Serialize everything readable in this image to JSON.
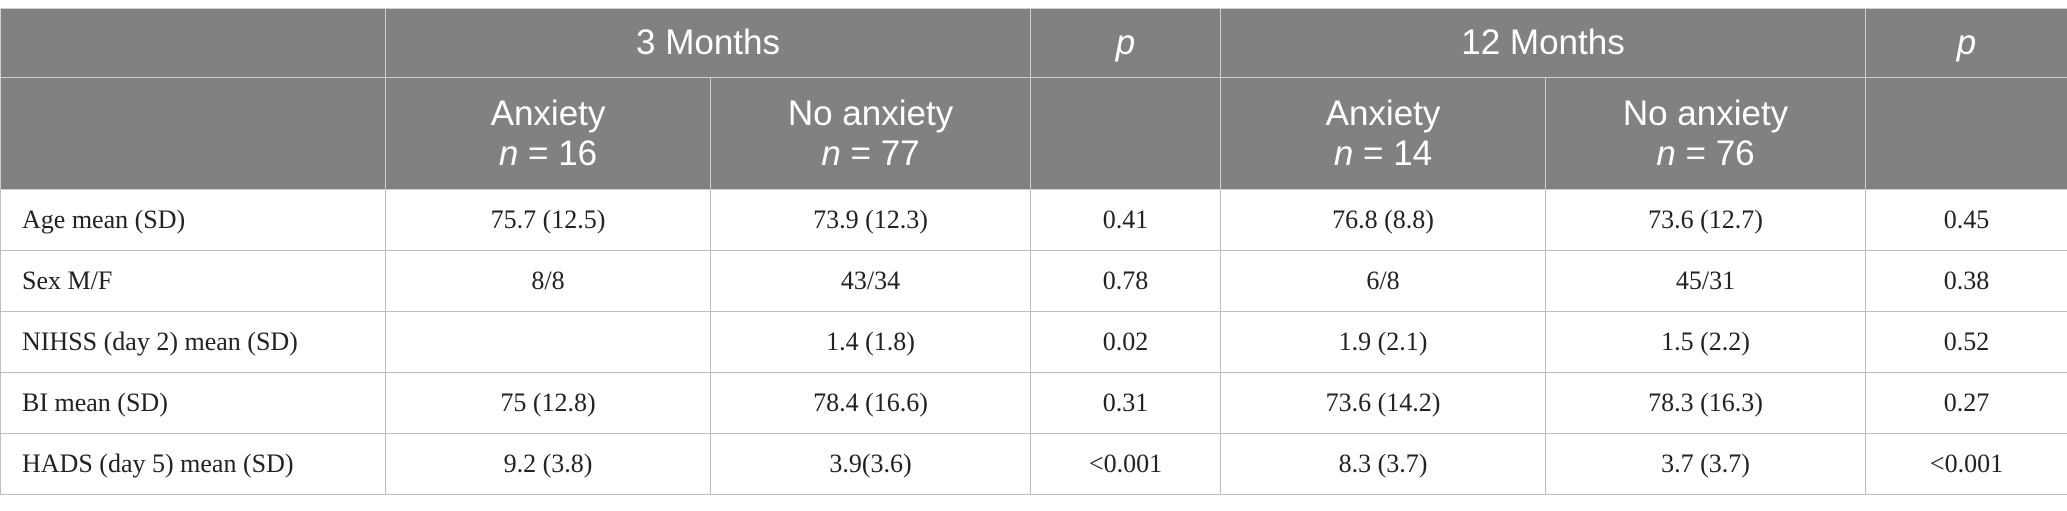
{
  "header": {
    "group_3m": "3 Months",
    "group_12m": "12 Months",
    "p_label": "p",
    "anxiety": "Anxiety",
    "no_anxiety": "No anxiety",
    "n_prefix": "n",
    "n_3m_anxiety": "= 16",
    "n_3m_no_anxiety": "= 77",
    "n_12m_anxiety": "= 14",
    "n_12m_no_anxiety": "= 76"
  },
  "rows": [
    {
      "label": "Age mean (SD)",
      "m3_anx": "75.7 (12.5)",
      "m3_noanx": "73.9 (12.3)",
      "p3": "0.41",
      "m12_anx": "76.8 (8.8)",
      "m12_noanx": "73.6 (12.7)",
      "p12": "0.45"
    },
    {
      "label": "Sex M/F",
      "m3_anx": "8/8",
      "m3_noanx": "43/34",
      "p3": "0.78",
      "m12_anx": "6/8",
      "m12_noanx": "45/31",
      "p12": "0.38"
    },
    {
      "label": "NIHSS (day 2) mean (SD)",
      "m3_anx": "",
      "m3_noanx": "1.4 (1.8)",
      "p3": "0.02",
      "m12_anx": "1.9 (2.1)",
      "m12_noanx": "1.5 (2.2)",
      "p12": "0.52"
    },
    {
      "label": "BI mean (SD)",
      "m3_anx": "75 (12.8)",
      "m3_noanx": "78.4 (16.6)",
      "p3": "0.31",
      "m12_anx": "73.6 (14.2)",
      "m12_noanx": "78.3 (16.3)",
      "p12": "0.27"
    },
    {
      "label": "HADS (day 5) mean (SD)",
      "m3_anx": "9.2 (3.8)",
      "m3_noanx": "3.9(3.6)",
      "p3": "<0.001",
      "m12_anx": "8.3 (3.7)",
      "m12_noanx": "3.7 (3.7)",
      "p12": "<0.001"
    }
  ]
}
